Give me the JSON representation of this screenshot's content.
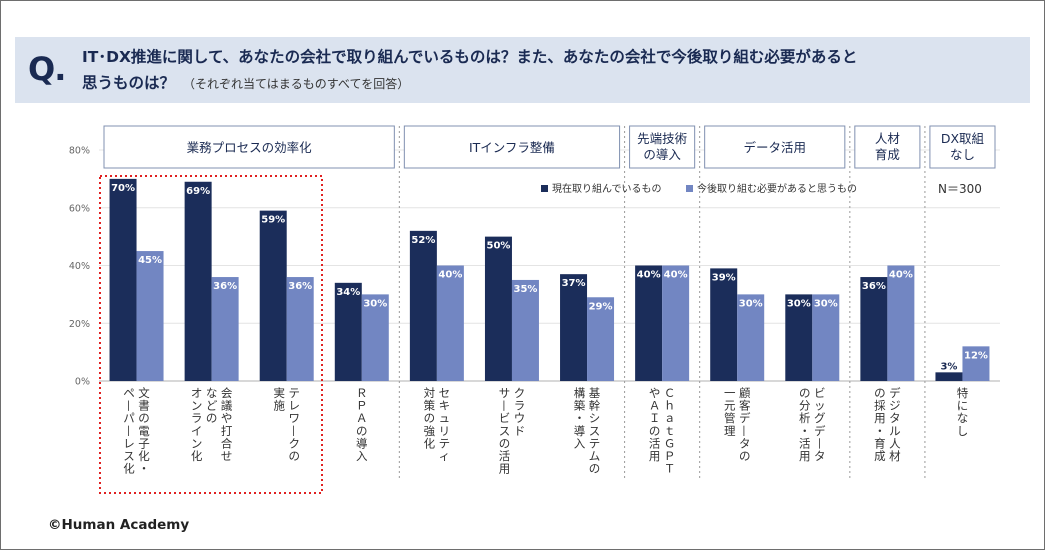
{
  "question": {
    "mark": "Q.",
    "line1": "IT･DX推進に関して、あなたの会社で取り組んでいるものは？また、あなたの会社で今後取り組む必要があると",
    "line2": "思うものは？",
    "note": "（それぞれ当てはまるものすべてを回答）"
  },
  "copyright": "©Human Academy",
  "colors": {
    "current": "#1b2d5a",
    "future": "#7286c2",
    "highlight": "#e02020",
    "boxBorder": "#8090b0"
  },
  "chart_data": {
    "type": "bar",
    "ylim": [
      0,
      80
    ],
    "yticks": [
      "0%",
      "20%",
      "40%",
      "60%",
      "80%"
    ],
    "ytick_values": [
      0,
      20,
      40,
      60,
      80
    ],
    "sample_size": "N＝300",
    "legend": [
      "現在取り組んでいるもの",
      "今後取り組む必要があると思うもの"
    ],
    "groups": [
      {
        "label": [
          "業務プロセスの効率化"
        ],
        "count": 4
      },
      {
        "label": [
          "ITインフラ整備"
        ],
        "count": 3
      },
      {
        "label": [
          "先端技術",
          "の導入"
        ],
        "count": 1
      },
      {
        "label": [
          "データ活用"
        ],
        "count": 2
      },
      {
        "label": [
          "人材",
          "育成"
        ],
        "count": 1
      },
      {
        "label": [
          "DX取組",
          "なし"
        ],
        "count": 1
      }
    ],
    "categories": [
      {
        "lines": [
          "文書の電子化・",
          "ペーパーレス化"
        ]
      },
      {
        "lines": [
          "会議や打合せ",
          "などの",
          "オンライン化"
        ]
      },
      {
        "lines": [
          "テレワークの",
          "実施"
        ]
      },
      {
        "lines": [
          "ＲＰＡの導入"
        ]
      },
      {
        "lines": [
          "セキュリティ",
          "対策の強化"
        ]
      },
      {
        "lines": [
          "クラウド",
          "サービスの活用"
        ]
      },
      {
        "lines": [
          "基幹システムの",
          "構築・導入"
        ]
      },
      {
        "lines": [
          "ＣｈａｔＧＰＴ",
          "やＡＩの活用"
        ]
      },
      {
        "lines": [
          "顧客データの",
          "一元管理"
        ]
      },
      {
        "lines": [
          "ビッグデータ",
          "の分析・活用"
        ]
      },
      {
        "lines": [
          "デジタル人材",
          "の採用・育成"
        ]
      },
      {
        "lines": [
          "特になし"
        ]
      }
    ],
    "series": [
      {
        "name": "現在取り組んでいるもの",
        "values": [
          70,
          69,
          59,
          34,
          52,
          50,
          37,
          40,
          39,
          30,
          36,
          3
        ],
        "labels": [
          "70%",
          "69%",
          "59%",
          "34%",
          "52%",
          "50%",
          "37%",
          "40%",
          "39%",
          "30%",
          "36%",
          "3%"
        ]
      },
      {
        "name": "今後取り組む必要があると思うもの",
        "values": [
          45,
          36,
          36,
          30,
          40,
          35,
          29,
          40,
          30,
          30,
          40,
          12
        ],
        "labels": [
          "45%",
          "36%",
          "36%",
          "30%",
          "40%",
          "35%",
          "29%",
          "40%",
          "30%",
          "30%",
          "40%",
          "12%"
        ]
      }
    ]
  }
}
